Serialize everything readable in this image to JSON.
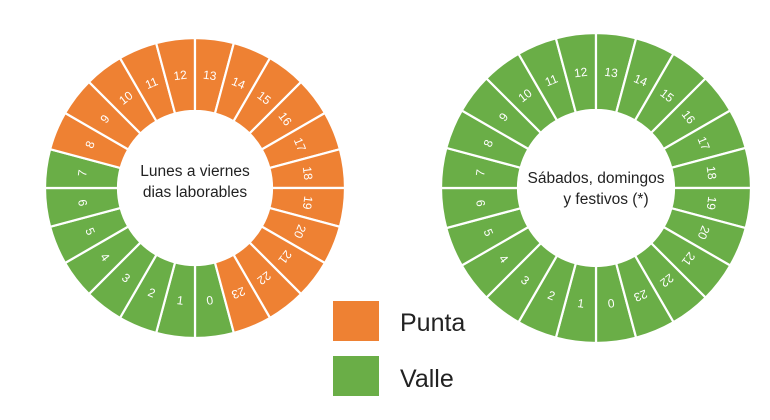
{
  "colors": {
    "punta": "#EE8133",
    "valle": "#6AAE47"
  },
  "wheels": [
    {
      "id": "weekday",
      "center_lines": [
        "Lunes a viernes",
        "dias laborables"
      ],
      "hours": [
        {
          "hour": "0",
          "tariff": "valle"
        },
        {
          "hour": "1",
          "tariff": "valle"
        },
        {
          "hour": "2",
          "tariff": "valle"
        },
        {
          "hour": "3",
          "tariff": "valle"
        },
        {
          "hour": "4",
          "tariff": "valle"
        },
        {
          "hour": "5",
          "tariff": "valle"
        },
        {
          "hour": "6",
          "tariff": "valle"
        },
        {
          "hour": "7",
          "tariff": "valle"
        },
        {
          "hour": "8",
          "tariff": "punta"
        },
        {
          "hour": "9",
          "tariff": "punta"
        },
        {
          "hour": "10",
          "tariff": "punta"
        },
        {
          "hour": "11",
          "tariff": "punta"
        },
        {
          "hour": "12",
          "tariff": "punta"
        },
        {
          "hour": "13",
          "tariff": "punta"
        },
        {
          "hour": "14",
          "tariff": "punta"
        },
        {
          "hour": "15",
          "tariff": "punta"
        },
        {
          "hour": "16",
          "tariff": "punta"
        },
        {
          "hour": "17",
          "tariff": "punta"
        },
        {
          "hour": "18",
          "tariff": "punta"
        },
        {
          "hour": "19",
          "tariff": "punta"
        },
        {
          "hour": "20",
          "tariff": "punta"
        },
        {
          "hour": "21",
          "tariff": "punta"
        },
        {
          "hour": "22",
          "tariff": "punta"
        },
        {
          "hour": "23",
          "tariff": "punta"
        }
      ]
    },
    {
      "id": "weekend",
      "center_lines": [
        "Sábados, domingos",
        "y festivos (*)"
      ],
      "hours": [
        {
          "hour": "0",
          "tariff": "valle"
        },
        {
          "hour": "1",
          "tariff": "valle"
        },
        {
          "hour": "2",
          "tariff": "valle"
        },
        {
          "hour": "3",
          "tariff": "valle"
        },
        {
          "hour": "4",
          "tariff": "valle"
        },
        {
          "hour": "5",
          "tariff": "valle"
        },
        {
          "hour": "6",
          "tariff": "valle"
        },
        {
          "hour": "7",
          "tariff": "valle"
        },
        {
          "hour": "8",
          "tariff": "valle"
        },
        {
          "hour": "9",
          "tariff": "valle"
        },
        {
          "hour": "10",
          "tariff": "valle"
        },
        {
          "hour": "11",
          "tariff": "valle"
        },
        {
          "hour": "12",
          "tariff": "valle"
        },
        {
          "hour": "13",
          "tariff": "valle"
        },
        {
          "hour": "14",
          "tariff": "valle"
        },
        {
          "hour": "15",
          "tariff": "valle"
        },
        {
          "hour": "16",
          "tariff": "valle"
        },
        {
          "hour": "17",
          "tariff": "valle"
        },
        {
          "hour": "18",
          "tariff": "valle"
        },
        {
          "hour": "19",
          "tariff": "valle"
        },
        {
          "hour": "20",
          "tariff": "valle"
        },
        {
          "hour": "21",
          "tariff": "valle"
        },
        {
          "hour": "22",
          "tariff": "valle"
        },
        {
          "hour": "23",
          "tariff": "valle"
        }
      ]
    }
  ],
  "legend": [
    {
      "tariff": "punta",
      "label": "Punta"
    },
    {
      "tariff": "valle",
      "label": "Valle"
    }
  ]
}
